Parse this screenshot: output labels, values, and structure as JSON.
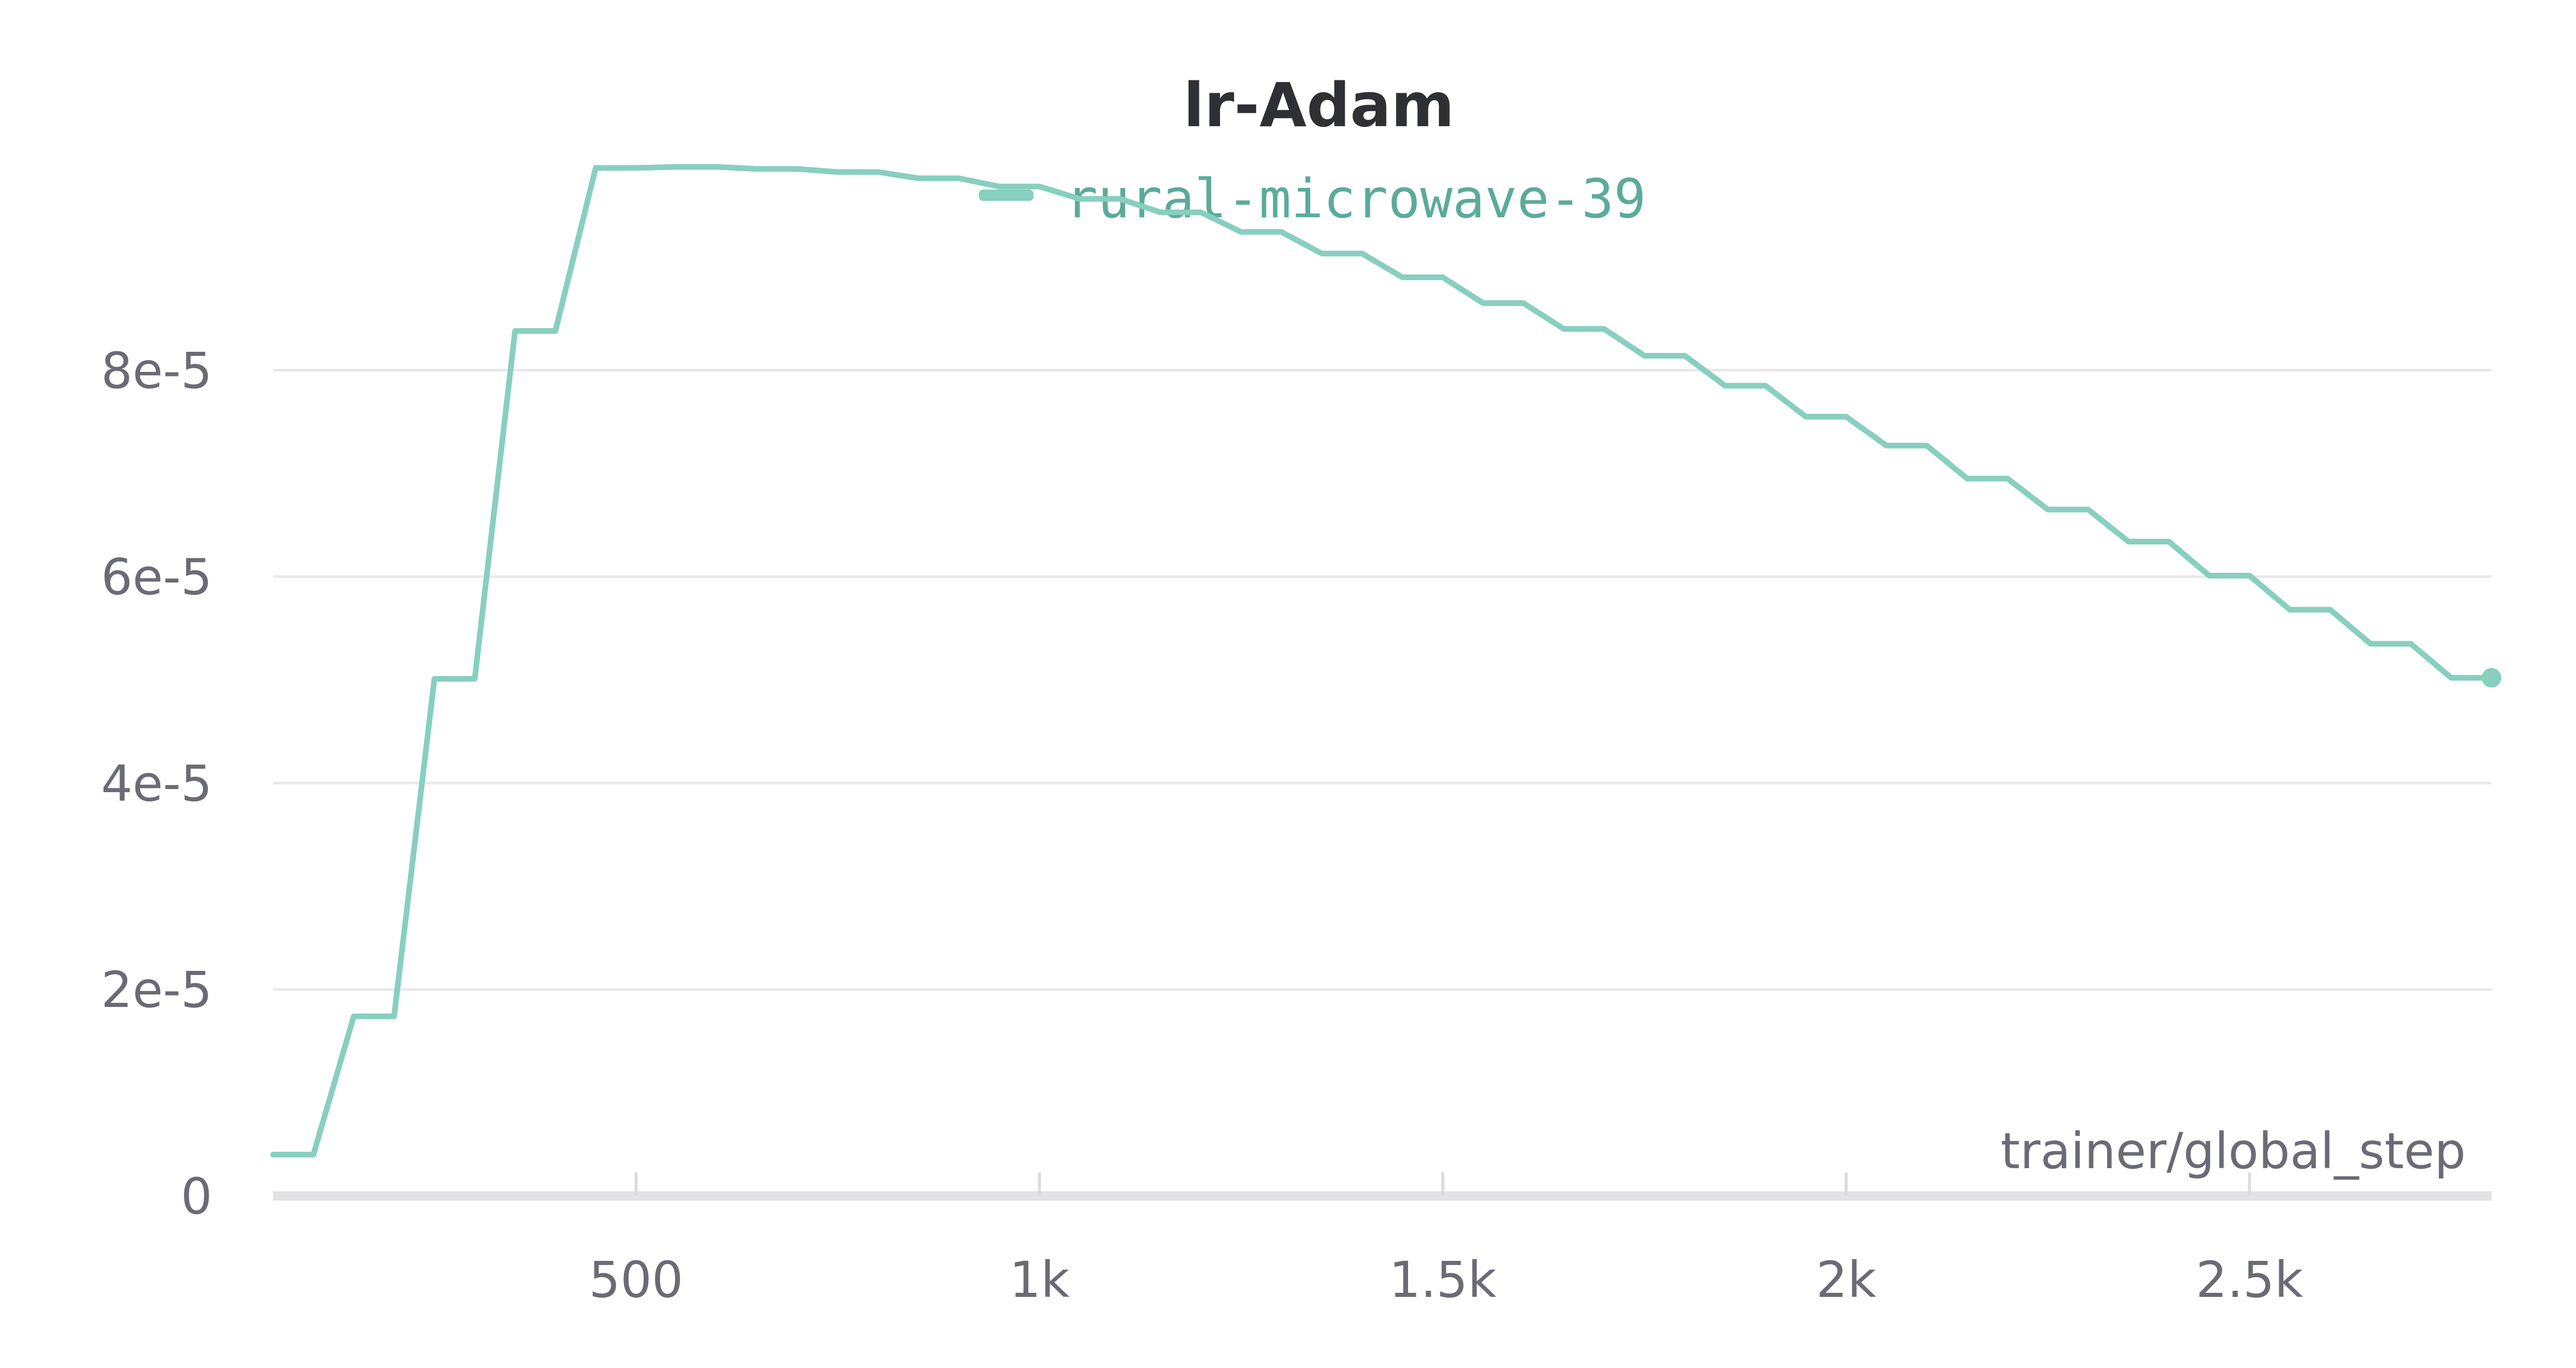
{
  "chart_data": {
    "type": "line",
    "title": "lr-Adam",
    "xlabel": "trainer/global_step",
    "ylabel": "",
    "xlim": [
      50,
      2800
    ],
    "ylim": [
      0,
      0.0001
    ],
    "grid": true,
    "legend_placement": "top-center",
    "x_ticks": [
      {
        "value": 500,
        "label": "500"
      },
      {
        "value": 1000,
        "label": "1k"
      },
      {
        "value": 1500,
        "label": "1.5k"
      },
      {
        "value": 2000,
        "label": "2k"
      },
      {
        "value": 2500,
        "label": "2.5k"
      }
    ],
    "y_ticks": [
      {
        "value": 0,
        "label": "0"
      },
      {
        "value": 2e-05,
        "label": "2e-5"
      },
      {
        "value": 4e-05,
        "label": "4e-5"
      },
      {
        "value": 6e-05,
        "label": "6e-5"
      },
      {
        "value": 8e-05,
        "label": "8e-5"
      }
    ],
    "series": [
      {
        "name": "rural-microwave-39",
        "color": "#87cfbe",
        "legend_text_color": "#5bab9a",
        "points": [
          [
            50,
            4e-06
          ],
          [
            100,
            4e-06
          ],
          [
            150,
            1.74e-05
          ],
          [
            200,
            1.74e-05
          ],
          [
            250,
            5.01e-05
          ],
          [
            300,
            5.01e-05
          ],
          [
            350,
            8.38e-05
          ],
          [
            400,
            8.38e-05
          ],
          [
            450,
            9.96e-05
          ],
          [
            500,
            9.96e-05
          ],
          [
            550,
            9.97e-05
          ],
          [
            600,
            9.97e-05
          ],
          [
            650,
            9.95e-05
          ],
          [
            700,
            9.95e-05
          ],
          [
            750,
            9.92e-05
          ],
          [
            800,
            9.92e-05
          ],
          [
            850,
            9.86e-05
          ],
          [
            900,
            9.86e-05
          ],
          [
            950,
            9.78e-05
          ],
          [
            1000,
            9.78e-05
          ],
          [
            1050,
            9.66e-05
          ],
          [
            1100,
            9.66e-05
          ],
          [
            1150,
            9.53e-05
          ],
          [
            1200,
            9.53e-05
          ],
          [
            1250,
            9.34e-05
          ],
          [
            1300,
            9.34e-05
          ],
          [
            1350,
            9.13e-05
          ],
          [
            1400,
            9.13e-05
          ],
          [
            1450,
            8.9e-05
          ],
          [
            1500,
            8.9e-05
          ],
          [
            1550,
            8.65e-05
          ],
          [
            1600,
            8.65e-05
          ],
          [
            1650,
            8.4e-05
          ],
          [
            1700,
            8.4e-05
          ],
          [
            1750,
            8.14e-05
          ],
          [
            1800,
            8.14e-05
          ],
          [
            1850,
            7.85e-05
          ],
          [
            1900,
            7.85e-05
          ],
          [
            1950,
            7.55e-05
          ],
          [
            2000,
            7.55e-05
          ],
          [
            2050,
            7.27e-05
          ],
          [
            2100,
            7.27e-05
          ],
          [
            2150,
            6.95e-05
          ],
          [
            2200,
            6.95e-05
          ],
          [
            2250,
            6.65e-05
          ],
          [
            2300,
            6.65e-05
          ],
          [
            2350,
            6.34e-05
          ],
          [
            2400,
            6.34e-05
          ],
          [
            2450,
            6.01e-05
          ],
          [
            2500,
            6.01e-05
          ],
          [
            2550,
            5.68e-05
          ],
          [
            2600,
            5.68e-05
          ],
          [
            2650,
            5.35e-05
          ],
          [
            2700,
            5.35e-05
          ],
          [
            2750,
            5.02e-05
          ],
          [
            2800,
            5.02e-05
          ]
        ]
      }
    ]
  },
  "colors": {
    "grid": "#e8e8ea",
    "axis": "#e2e2e4",
    "tick_mark": "#dcdcdf",
    "tick_text": "#6b6b76",
    "title": "#2f3033"
  }
}
